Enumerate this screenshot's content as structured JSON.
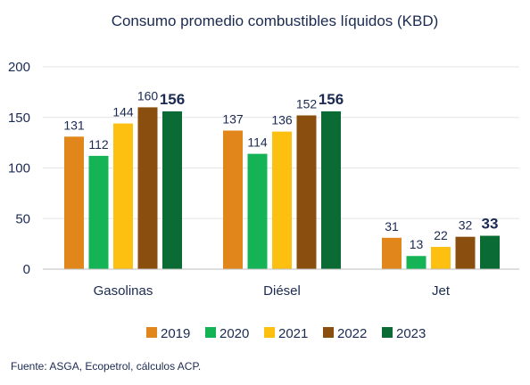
{
  "chart_data": {
    "type": "bar",
    "title": "Consumo promedio combustibles líquidos (KBD)",
    "categories": [
      "Gasolinas",
      "Diésel",
      "Jet"
    ],
    "series": [
      {
        "name": "2019",
        "color": "#e0861a",
        "values": [
          131,
          137,
          31
        ]
      },
      {
        "name": "2020",
        "color": "#14b356",
        "values": [
          112,
          114,
          13
        ]
      },
      {
        "name": "2021",
        "color": "#fdc010",
        "values": [
          144,
          136,
          22
        ]
      },
      {
        "name": "2022",
        "color": "#8a4f0e",
        "values": [
          160,
          152,
          32
        ]
      },
      {
        "name": "2023",
        "color": "#0b6b34",
        "values": [
          156,
          156,
          33
        ]
      }
    ],
    "emphasized_series": "2023",
    "ylim": [
      0,
      200
    ],
    "yticks": [
      0,
      50,
      100,
      150,
      200
    ],
    "grid": true,
    "legend": "bottom"
  },
  "footer": {
    "source": "Fuente: ASGA, Ecopetrol, cálculos ACP."
  }
}
